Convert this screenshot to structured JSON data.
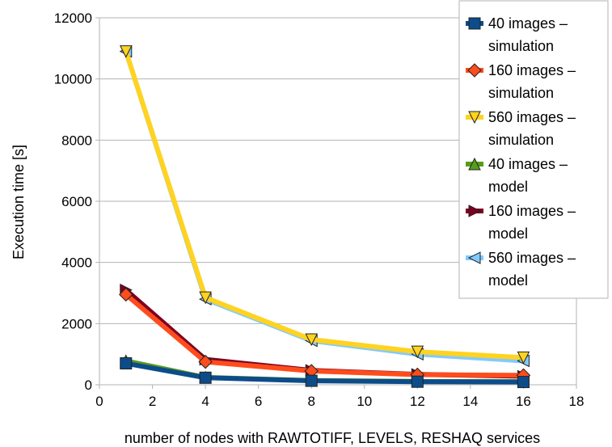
{
  "chart_data": {
    "type": "line",
    "title": "",
    "xlabel": "number of nodes with RAWTOTIFF, LEVELS, RESHAQ services",
    "ylabel": "Execution time [s]",
    "xlim": [
      0,
      18
    ],
    "ylim": [
      0,
      12000
    ],
    "x_ticks": [
      0,
      2,
      4,
      6,
      8,
      10,
      12,
      14,
      16,
      18
    ],
    "y_ticks": [
      0,
      2000,
      4000,
      6000,
      8000,
      10000,
      12000
    ],
    "grid": "horizontal",
    "legend_position": "right",
    "series": [
      {
        "name": "40 images – simulation",
        "legend_lines": [
          "40 images –",
          "simulation"
        ],
        "color": "#0c4c8a",
        "marker": "square",
        "x": [
          1,
          4,
          8,
          12,
          16
        ],
        "y": [
          700,
          230,
          130,
          100,
          90
        ]
      },
      {
        "name": "160 images – simulation",
        "legend_lines": [
          "160 images –",
          "simulation"
        ],
        "color": "#ff4c1c",
        "marker": "diamond",
        "x": [
          1,
          4,
          8,
          12,
          16
        ],
        "y": [
          2950,
          750,
          450,
          330,
          310
        ]
      },
      {
        "name": "560 images – simulation",
        "legend_lines": [
          "560 images –",
          "simulation"
        ],
        "color": "#ffd320",
        "marker": "triangle-down",
        "x": [
          1,
          4,
          8,
          12,
          16
        ],
        "y": [
          10900,
          2850,
          1480,
          1080,
          890
        ]
      },
      {
        "name": "40 images – model",
        "legend_lines": [
          "40 images –",
          "model"
        ],
        "color": "#579d1c",
        "marker": "triangle-up",
        "x": [
          1,
          4,
          8,
          12,
          16
        ],
        "y": [
          780,
          240,
          140,
          110,
          100
        ]
      },
      {
        "name": "160 images – model",
        "legend_lines": [
          "160 images –",
          "model"
        ],
        "color": "#7e0021",
        "marker": "triangle-right",
        "x": [
          1,
          4,
          8,
          12,
          16
        ],
        "y": [
          3100,
          830,
          470,
          340,
          280
        ]
      },
      {
        "name": "560 images – model",
        "legend_lines": [
          "560 images –",
          "model"
        ],
        "color": "#83caff",
        "marker": "triangle-left",
        "x": [
          1,
          4,
          8,
          12,
          16
        ],
        "y": [
          10900,
          2800,
          1440,
          1000,
          780
        ]
      }
    ]
  }
}
